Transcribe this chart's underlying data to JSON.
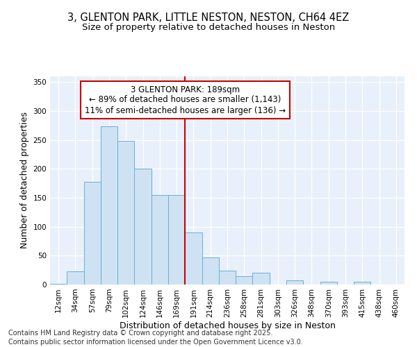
{
  "title_line1": "3, GLENTON PARK, LITTLE NESTON, NESTON, CH64 4EZ",
  "title_line2": "Size of property relative to detached houses in Neston",
  "xlabel": "Distribution of detached houses by size in Neston",
  "ylabel": "Number of detached properties",
  "footnote1": "Contains HM Land Registry data © Crown copyright and database right 2025.",
  "footnote2": "Contains public sector information licensed under the Open Government Licence v3.0.",
  "categories": [
    "12sqm",
    "34sqm",
    "57sqm",
    "79sqm",
    "102sqm",
    "124sqm",
    "146sqm",
    "169sqm",
    "191sqm",
    "214sqm",
    "236sqm",
    "258sqm",
    "281sqm",
    "303sqm",
    "326sqm",
    "348sqm",
    "370sqm",
    "393sqm",
    "415sqm",
    "438sqm",
    "460sqm"
  ],
  "values": [
    1,
    23,
    178,
    274,
    248,
    200,
    155,
    155,
    90,
    47,
    24,
    14,
    21,
    0,
    7,
    0,
    5,
    0,
    5,
    0,
    0
  ],
  "bar_color": "#cfe2f3",
  "bar_edge_color": "#6aaed6",
  "background_color": "#f0f4ff",
  "plot_bg_color": "#e8f0fb",
  "grid_color": "#ffffff",
  "vline_color": "#cc0000",
  "vline_x_index": 8,
  "annotation_text_line1": "3 GLENTON PARK: 189sqm",
  "annotation_text_line2": "← 89% of detached houses are smaller (1,143)",
  "annotation_text_line3": "11% of semi-detached houses are larger (136) →",
  "annotation_box_color": "#cc0000",
  "ylim": [
    0,
    360
  ],
  "yticks": [
    0,
    50,
    100,
    150,
    200,
    250,
    300,
    350
  ],
  "title_fontsize": 10.5,
  "subtitle_fontsize": 9.5,
  "axis_label_fontsize": 9,
  "tick_fontsize": 7.5,
  "annotation_fontsize": 8.5,
  "footnote_fontsize": 7
}
